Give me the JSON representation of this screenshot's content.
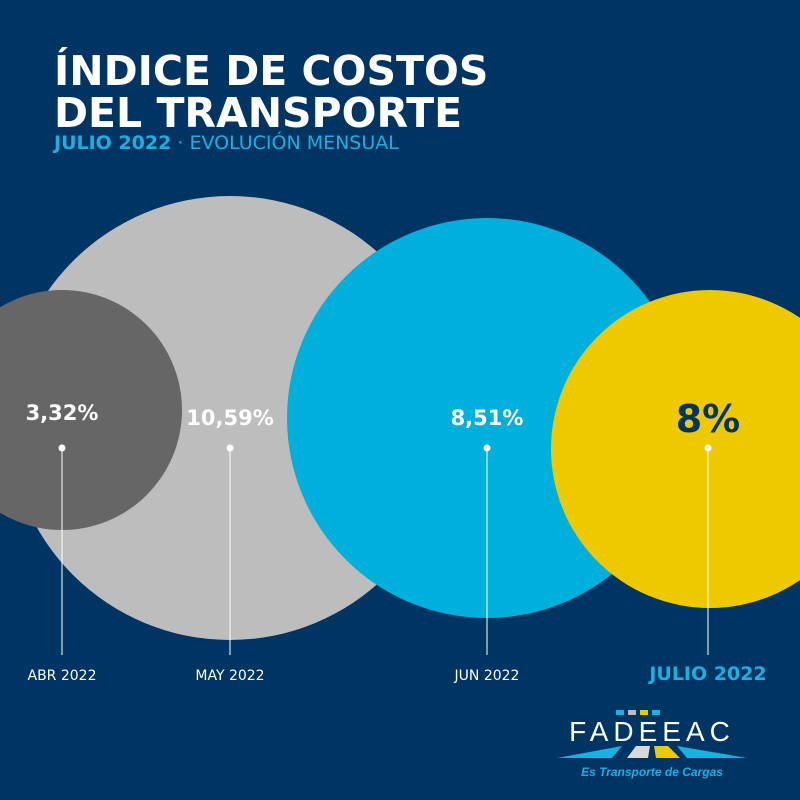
{
  "header": {
    "title_line1": "ÍNDICE DE COSTOS",
    "title_line2": "DEL TRANSPORTE",
    "subtitle_bold": "JULIO 2022",
    "subtitle_sep": " · ",
    "subtitle_rest": "EVOLUCIÓN MENSUAL"
  },
  "chart_data": {
    "type": "bubble",
    "title": "ÍNDICE DE COSTOS DEL TRANSPORTE",
    "subtitle": "JULIO 2022 · EVOLUCIÓN MENSUAL",
    "categories": [
      "ABR 2022",
      "MAY 2022",
      "JUN 2022",
      "JULIO 2022"
    ],
    "values": [
      3.32,
      10.59,
      8.51,
      8
    ],
    "value_labels": [
      "3,32%",
      "10,59%",
      "8,51%",
      "8%"
    ],
    "unit": "%",
    "colors": [
      "#666666",
      "#bdbdbd",
      "#00b0dc",
      "#eec900"
    ],
    "label_colors": [
      "#ffffff",
      "#ffffff",
      "#ffffff",
      "#003462"
    ],
    "category_label_colors": [
      "#ffffff",
      "#ffffff",
      "#ffffff",
      "#1ab0e0"
    ]
  },
  "logo": {
    "name": "FADEEAC",
    "tagline": "Es Transporte de Cargas"
  },
  "colors": {
    "background": "#003462",
    "accent": "#1ab0e0"
  }
}
